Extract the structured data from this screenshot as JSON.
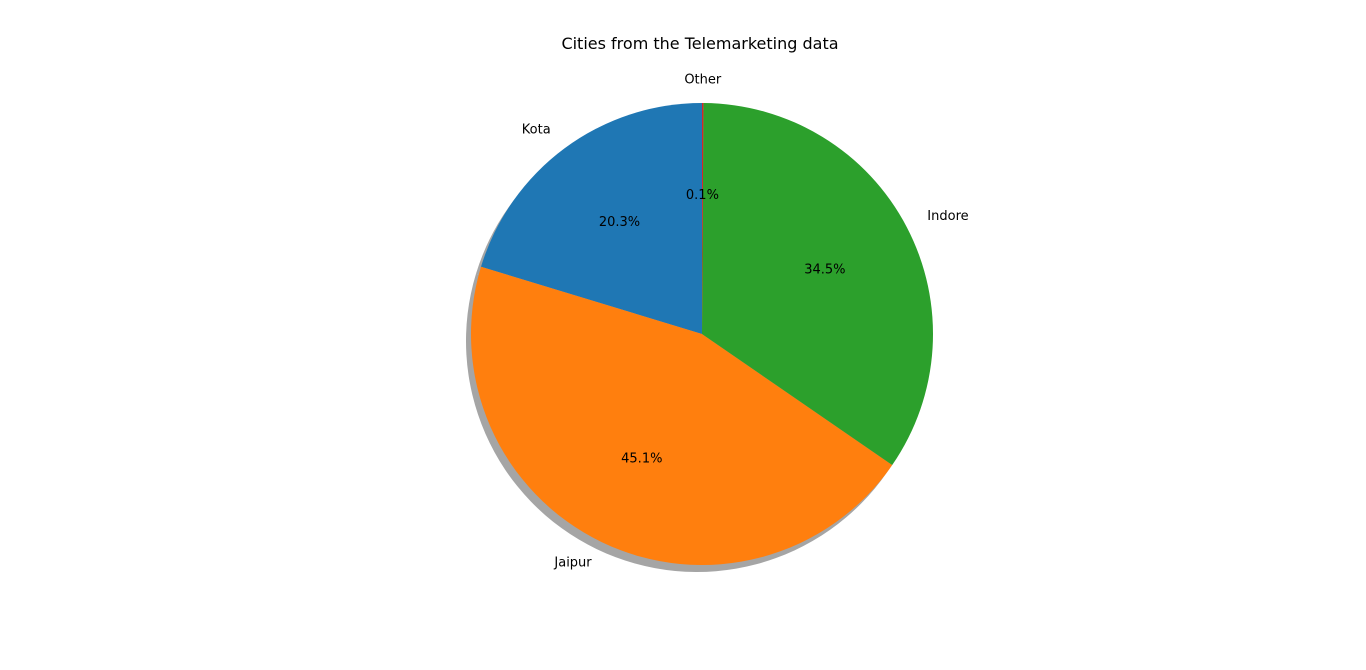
{
  "chart_data": {
    "type": "pie",
    "title": "Cities from the Telemarketing data",
    "categories": [
      "Kota",
      "Jaipur",
      "Indore",
      "Other"
    ],
    "values": [
      20.3,
      45.1,
      34.5,
      0.1
    ],
    "value_labels": [
      "20.3%",
      "45.1%",
      "34.5%",
      "0.1%"
    ],
    "colors": [
      "#1f77b4",
      "#ff7f0e",
      "#2ca02c",
      "#d62728"
    ],
    "start_angle_deg": 90,
    "direction": "counterclockwise",
    "shadow": true,
    "legend": "none"
  }
}
